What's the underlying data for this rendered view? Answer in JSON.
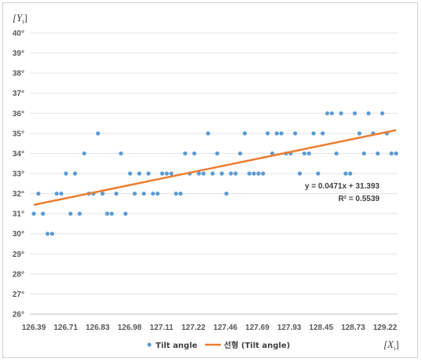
{
  "chart_data": {
    "type": "scatter",
    "title": "",
    "y_axis_title": "[Y",
    "y_axis_sub": "i",
    "y_axis_close": "]",
    "x_axis_title": "[X",
    "x_axis_sub": "i",
    "x_axis_close": "]",
    "ylim": [
      26,
      40
    ],
    "y_ticks": [
      "26°",
      "27°",
      "28°",
      "29°",
      "30°",
      "31°",
      "32°",
      "33°",
      "34°",
      "35°",
      "36°",
      "37°",
      "38°",
      "39°",
      "40°"
    ],
    "x_tick_labels": [
      "126.39",
      "126.71",
      "126.83",
      "126.98",
      "127.11",
      "127.22",
      "127.46",
      "127.69",
      "127.93",
      "128.45",
      "128.73",
      "129.22"
    ],
    "grid": "horizontal",
    "legend_position": "bottom",
    "series": [
      {
        "name": "Tilt angle",
        "color": "#5b9bd5",
        "kind": "scatter",
        "values": [
          31,
          32,
          31,
          30,
          30,
          32,
          32,
          33,
          31,
          33,
          31,
          34,
          32,
          32,
          35,
          32,
          31,
          31,
          32,
          34,
          31,
          33,
          32,
          33,
          32,
          33,
          32,
          32,
          33,
          33,
          33,
          32,
          32,
          34,
          33,
          34,
          33,
          33,
          35,
          33,
          34,
          33,
          32,
          33,
          33,
          34,
          35,
          33,
          33,
          33,
          33,
          35,
          34,
          35,
          35,
          34,
          34,
          35,
          33,
          34,
          34,
          35,
          33,
          35,
          36,
          36,
          34,
          36,
          33,
          33,
          36,
          35,
          34,
          36,
          35,
          34,
          36,
          35,
          34,
          34
        ]
      },
      {
        "name": "선형 (Tilt angle)",
        "color": "#ed7d31",
        "kind": "trendline"
      }
    ],
    "trendline": {
      "equation": "y = 0.0471x + 31.393",
      "r2": "R² = 0.5539",
      "slope": 0.0471,
      "intercept": 31.393
    }
  }
}
